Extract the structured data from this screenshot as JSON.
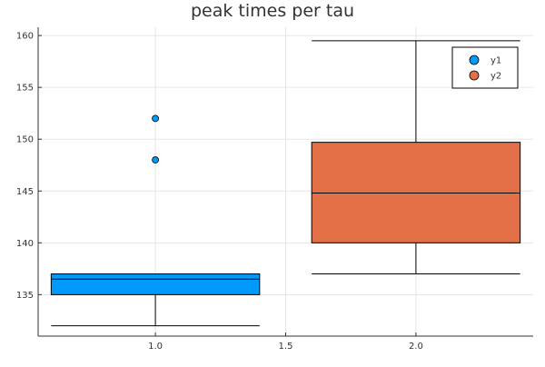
{
  "chart_data": {
    "type": "boxplot",
    "title": "peak times per tau",
    "xlabel": "",
    "ylabel": "",
    "xlim": [
      0.55,
      2.45
    ],
    "ylim": [
      131.0,
      160.8
    ],
    "x_ticks": [
      1.0,
      1.5,
      2.0
    ],
    "x_tick_labels": [
      "1.0",
      "1.5",
      "2.0"
    ],
    "y_ticks": [
      135,
      140,
      145,
      150,
      155,
      160
    ],
    "y_tick_labels": [
      "135",
      "140",
      "145",
      "150",
      "155",
      "160"
    ],
    "grid": true,
    "legend_position": "top-right",
    "series": [
      {
        "name": "y1",
        "color": "#009AFA",
        "x": 1.0,
        "box_halfwidth": 0.4,
        "whisker_low": 132,
        "q1": 135,
        "median": 136.5,
        "q3": 137,
        "whisker_high": 137,
        "outliers": [
          148,
          152
        ]
      },
      {
        "name": "y2",
        "color": "#E26F46",
        "x": 2.0,
        "box_halfwidth": 0.4,
        "whisker_low": 137,
        "q1": 140,
        "median": 144.8,
        "q3": 149.7,
        "whisker_high": 159.5,
        "outliers": []
      }
    ]
  }
}
